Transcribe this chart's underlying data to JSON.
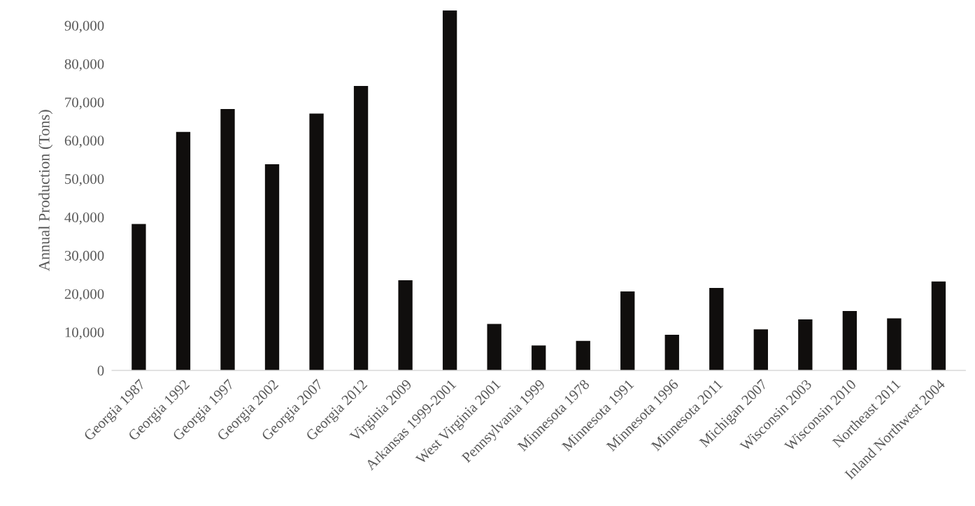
{
  "chart_data": {
    "type": "bar",
    "ylabel": "Annual Production (Tons)",
    "categories": [
      "Georgia 1987",
      "Georgia 1992",
      "Georgia 1997",
      "Georgia 2002",
      "Georgia 2007",
      "Georgia 2012",
      "Virginia 2009",
      "Arkansas 1999-2001",
      "West Virginia 2001",
      "Pennsylvania 1999",
      "Minnesota 1978",
      "Minnesota 1991",
      "Minnesota 1996",
      "Minnesota 2011",
      "Michigan 2007",
      "Wisconsin 2003",
      "Wisconsin 2010",
      "Northeast 2011",
      "Inland Northwest 2004"
    ],
    "values": [
      38200,
      62200,
      68200,
      53800,
      67000,
      74200,
      23500,
      93900,
      12100,
      6500,
      7700,
      20600,
      9300,
      21500,
      10700,
      13300,
      15500,
      13600,
      23200
    ],
    "color": "#100e0d",
    "ylim": [
      0,
      94000
    ],
    "yticks": [
      {
        "value": 0,
        "label": "0"
      },
      {
        "value": 10000,
        "label": "10,000"
      },
      {
        "value": 20000,
        "label": "20,000"
      },
      {
        "value": 30000,
        "label": "30,000"
      },
      {
        "value": 40000,
        "label": "40,000"
      },
      {
        "value": 50000,
        "label": "50,000"
      },
      {
        "value": 60000,
        "label": "60,000"
      },
      {
        "value": 70000,
        "label": "70,000"
      },
      {
        "value": 80000,
        "label": "80,000"
      },
      {
        "value": 90000,
        "label": "90,000"
      }
    ]
  }
}
